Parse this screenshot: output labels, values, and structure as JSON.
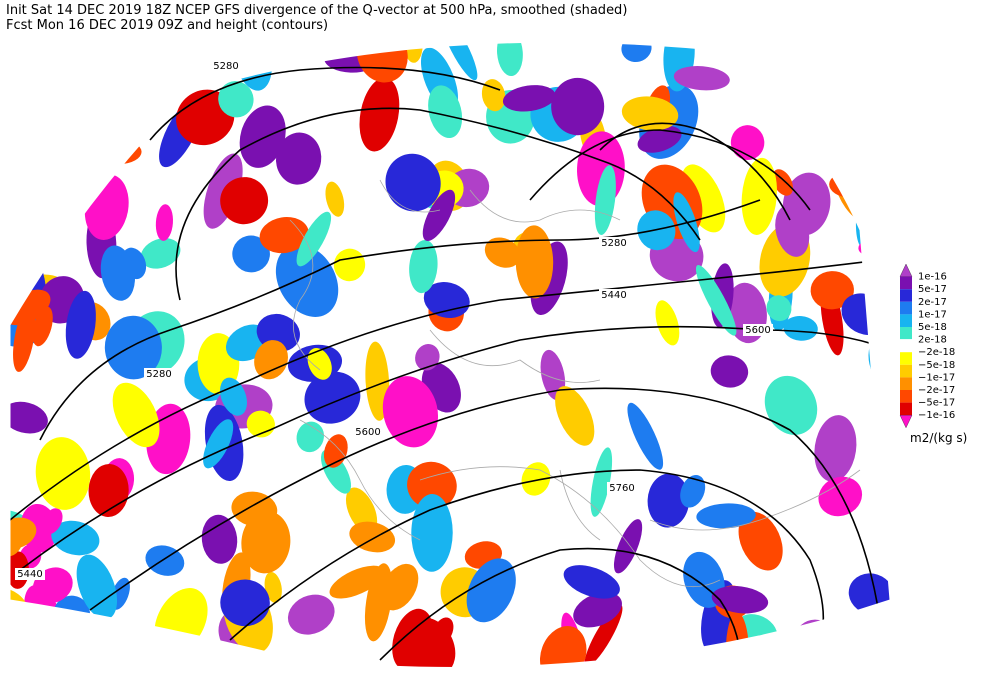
{
  "header": {
    "line1": "Init  Sat 14 DEC 2019 18Z  NCEP GFS divergence of the Q-vector at 500 hPa, smoothed (shaded)",
    "line2": "Fcst Mon 16 DEC 2019 09Z  and height (contours)"
  },
  "contour_labels": [
    "5280",
    "5280",
    "5280",
    "5440",
    "5600",
    "5600",
    "5760",
    "5440"
  ],
  "colorbar": {
    "labels": [
      "1e-16",
      "5e-17",
      "2e-17",
      "1e-17",
      "5e-18",
      "2e-18",
      "−2e-18",
      "−5e-18",
      "−1e-17",
      "−2e-17",
      "−5e-17",
      "−1e-16"
    ],
    "colors": [
      "#b040c8",
      "#7a10b0",
      "#2828d8",
      "#1e7cf0",
      "#18b4f0",
      "#40e8c8",
      "#ffffff",
      "#ffff00",
      "#ffcc00",
      "#ff9000",
      "#ff4800",
      "#e00000",
      "#ff10c8"
    ],
    "units": "m2/(kg s)"
  }
}
